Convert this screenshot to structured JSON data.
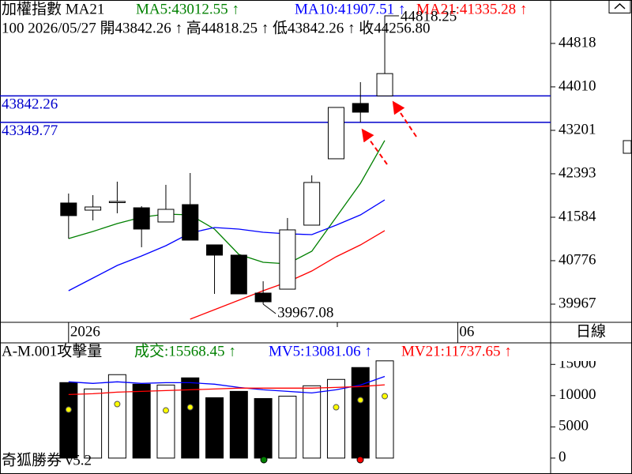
{
  "chart_data": [
    {
      "type": "candlestick",
      "title": "加權指數 MA21",
      "info": "100 2026/05/27 開43842.26 ↑ 高44818.25 ↑ 低43842.26 ↑ 收44256.80",
      "period": "日線",
      "x": [
        0,
        1,
        2,
        3,
        4,
        5,
        6,
        7,
        8,
        9,
        10,
        11,
        12,
        13
      ],
      "open": [
        41849,
        41716,
        41863,
        41760,
        41496,
        41819,
        41070,
        40879,
        40173,
        40246,
        41437,
        42672,
        43701,
        43842.26
      ],
      "high": [
        42025,
        41996,
        42246,
        41790,
        42187,
        42407,
        41070,
        40879,
        40393,
        41570,
        42363,
        43627,
        44098,
        44818.25
      ],
      "low": [
        41187,
        41525,
        41658,
        41026,
        41496,
        41158,
        40158,
        40158,
        39967.08,
        40246,
        41437,
        42672,
        43349.77,
        43842.26
      ],
      "close": [
        41614,
        41775,
        41878,
        41364,
        41731,
        41158,
        40879,
        40158,
        40011,
        41349,
        42231,
        43627,
        43539,
        44256.8
      ],
      "up_color": "#ffffff",
      "down_color": "#000000",
      "series": [
        {
          "name": "MA5:43012.55 ↑",
          "color": "#008000",
          "values": [
            41187,
            41320,
            41467,
            41584,
            41643,
            41628,
            41364,
            40893,
            40746,
            40717,
            40952,
            41584,
            42216,
            43012.55
          ]
        },
        {
          "name": "MA10:41907.51 ↑",
          "color": "#0000ff",
          "values": [
            40217,
            40452,
            40687,
            40864,
            41055,
            41290,
            41393,
            41364,
            41305,
            41275,
            41261,
            41437,
            41628,
            41907.51
          ]
        },
        {
          "name": "MA21:41335.28 ↑",
          "color": "#ff0000",
          "values": [
            null,
            null,
            null,
            null,
            null,
            39688,
            39864,
            40040,
            40217,
            40379,
            40584,
            40849,
            41070,
            41335.28
          ]
        }
      ],
      "hlines": [
        43842.26,
        43349.77
      ],
      "hline_color": "#0000cc",
      "xlim": [
        -2.82,
        19.82
      ],
      "xticks": [
        {
          "value": 0,
          "label": "2026"
        },
        {
          "value": 16,
          "label": "06"
        }
      ],
      "ylim": [
        39629,
        45626
      ],
      "yticks": [
        39967,
        40776,
        41584,
        42393,
        43201,
        44010,
        44818
      ]
    },
    {
      "type": "bar",
      "title": "A-M.001攻擊量",
      "value_label": "成交:15568.45 ↑",
      "value_label_color": "#008000",
      "footer": "奇狐勝券 v5.2",
      "x": [
        0,
        1,
        2,
        3,
        4,
        5,
        6,
        7,
        8,
        9,
        10,
        11,
        12,
        13
      ],
      "values": [
        12090,
        11070,
        13360,
        11830,
        11700,
        12850,
        9670,
        10690,
        9540,
        9920,
        11580,
        12600,
        14500,
        15568.45
      ],
      "series": [
        {
          "name": "MV5:13081.06 ↑",
          "color": "#0000ff",
          "values": [
            12210,
            11960,
            12210,
            11960,
            12080,
            12080,
            11830,
            11320,
            10940,
            10690,
            10430,
            10940,
            11700,
            13081.06
          ]
        },
        {
          "name": "MV21:11737.65 ↑",
          "color": "#ff0000",
          "values": [
            10180,
            10310,
            10560,
            10690,
            10810,
            10940,
            11070,
            11200,
            11200,
            11200,
            11200,
            11320,
            11450,
            11737.65
          ]
        }
      ],
      "markers": {
        "color": "#ffff00",
        "values": [
          7760,
          null,
          8650,
          null,
          7630,
          8140,
          null,
          null,
          null,
          null,
          null,
          8140,
          9290,
          9920
        ]
      },
      "xlim": [
        -2.82,
        19.82
      ],
      "ylim": [
        -2545,
        18450
      ],
      "yticks": [
        0,
        5000,
        10000,
        15000
      ]
    }
  ]
}
